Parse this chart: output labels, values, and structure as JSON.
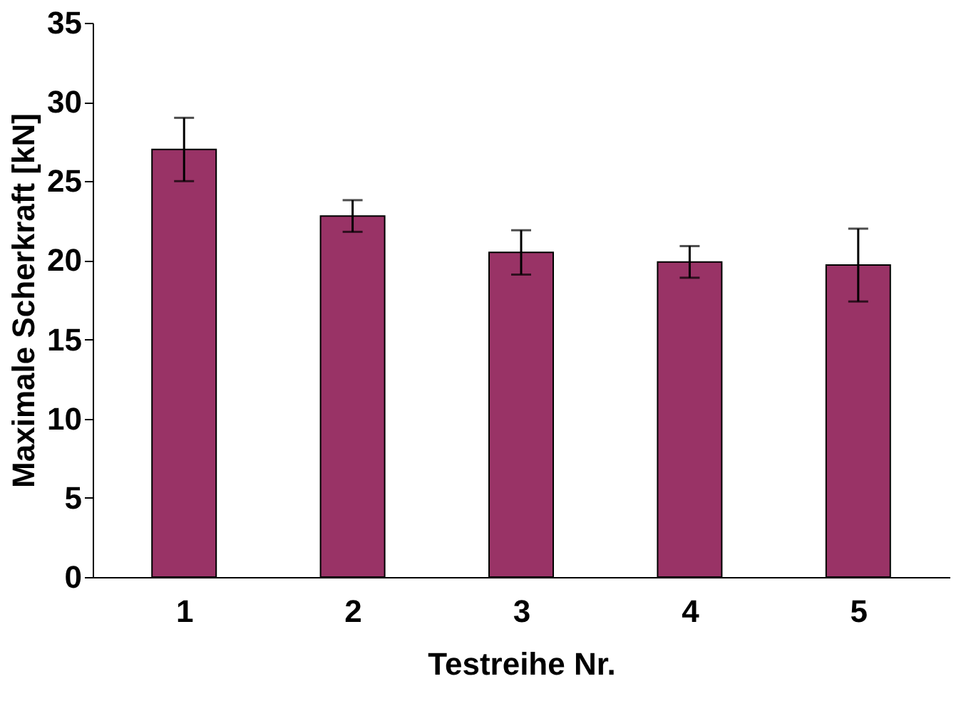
{
  "chart_data": {
    "type": "bar",
    "xlabel": "Testreihe Nr.",
    "ylabel": "Maximale Scherkraft [kN]",
    "categories": [
      "1",
      "2",
      "3",
      "4",
      "5"
    ],
    "values": [
      27.0,
      22.8,
      20.5,
      19.9,
      19.7
    ],
    "errors": [
      2.0,
      1.0,
      1.4,
      1.0,
      2.3
    ],
    "color": "#993366",
    "ylim": [
      0,
      35
    ],
    "yticks": [
      0,
      5,
      10,
      15,
      20,
      25,
      30,
      35
    ],
    "grid": false
  }
}
